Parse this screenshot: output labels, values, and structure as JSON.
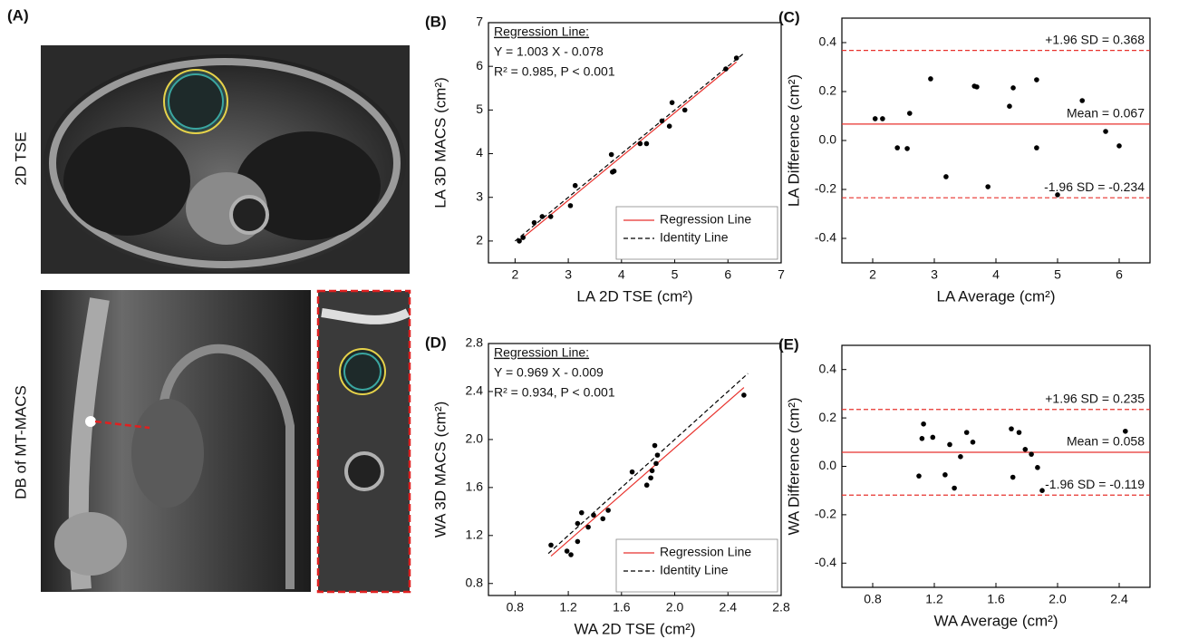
{
  "panel_a": {
    "label": "(A)",
    "top_label": "2D TSE",
    "bottom_label": "DB of MT-MACS"
  },
  "chart_data": [
    {
      "type": "scatter",
      "title": "(B)",
      "x_label": "LA 2D TSE (cm²)",
      "y_label": "LA 3D MACS (cm²)",
      "annotation": [
        "Regression Line:",
        "Y = 1.003 X - 0.078",
        "R² = 0.985, P < 0.001"
      ],
      "x": [
        2.08,
        2.15,
        2.36,
        2.51,
        2.67,
        3.04,
        3.13,
        3.81,
        3.83,
        3.86,
        4.35,
        4.47,
        4.76,
        4.9,
        4.95,
        5.19,
        5.96,
        6.16
      ],
      "values": [
        2.0,
        2.08,
        2.42,
        2.56,
        2.56,
        2.81,
        3.27,
        3.98,
        3.58,
        3.6,
        4.23,
        4.23,
        4.75,
        4.63,
        5.17,
        5.0,
        5.94,
        6.19
      ],
      "color": "#000000",
      "series": [
        {
          "name": "Regression Line",
          "color": "#e8322d",
          "dash": false,
          "x": [
            2.08,
            6.16
          ],
          "values": [
            2.01,
            6.1
          ]
        },
        {
          "name": "Identity Line",
          "color": "#000000",
          "dash": true,
          "x": [
            2.0,
            6.3
          ],
          "values": [
            2.0,
            6.3
          ]
        }
      ],
      "legend": "lower right",
      "xlim": [
        1.5,
        7
      ],
      "ylim": [
        1.5,
        7
      ],
      "xticks": [
        2,
        3,
        4,
        5,
        6,
        7
      ],
      "yticks": [
        2,
        3,
        4,
        5,
        6,
        7
      ],
      "grid": false
    },
    {
      "type": "scatter",
      "title": "(C)",
      "x_label": "LA Average (cm²)",
      "y_label": "LA Difference (cm²)",
      "x": [
        2.04,
        2.16,
        2.4,
        2.6,
        2.56,
        2.94,
        3.19,
        3.65,
        3.69,
        3.87,
        4.22,
        4.28,
        4.66,
        4.66,
        5.0,
        5.4,
        5.78,
        6.0
      ],
      "values": [
        0.089,
        0.089,
        -0.03,
        0.111,
        -0.033,
        0.252,
        -0.148,
        0.222,
        0.219,
        -0.189,
        0.14,
        0.215,
        0.248,
        -0.03,
        -0.222,
        0.163,
        0.037,
        -0.022
      ],
      "color": "#000000",
      "hlines": [
        {
          "label": "+1.96 SD = 0.368",
          "value": 0.368,
          "color": "#e8322d",
          "dash": true
        },
        {
          "label": "Mean = 0.067",
          "value": 0.067,
          "color": "#e8322d",
          "dash": false
        },
        {
          "label": "-1.96 SD = -0.234",
          "value": -0.234,
          "color": "#e8322d",
          "dash": true
        }
      ],
      "xlim": [
        1.5,
        6.5
      ],
      "ylim": [
        -0.5,
        0.5
      ],
      "xticks": [
        2,
        3,
        4,
        5,
        6
      ],
      "yticks": [
        -0.4,
        -0.2,
        {
          "value": 0,
          "label": "0.0"
        },
        0.2,
        0.4
      ],
      "grid": false
    },
    {
      "type": "scatter",
      "title": "(D)",
      "x_label": "WA 2D TSE (cm²)",
      "y_label": "WA 3D MACS (cm²)",
      "annotation": [
        "Regression Line:",
        "Y = 0.969 X - 0.009",
        "R² = 0.934, P < 0.001"
      ],
      "x": [
        1.07,
        1.19,
        1.22,
        1.27,
        1.27,
        1.3,
        1.35,
        1.39,
        1.46,
        1.5,
        1.68,
        1.79,
        1.82,
        1.83,
        1.85,
        1.86,
        1.87,
        2.52
      ],
      "values": [
        1.12,
        1.07,
        1.04,
        1.3,
        1.15,
        1.39,
        1.27,
        1.37,
        1.34,
        1.41,
        1.73,
        1.62,
        1.68,
        1.74,
        1.95,
        1.8,
        1.87,
        2.37
      ],
      "color": "#000000",
      "series": [
        {
          "name": "Regression Line",
          "color": "#e8322d",
          "dash": false,
          "x": [
            1.07,
            2.52
          ],
          "values": [
            1.028,
            2.433
          ]
        },
        {
          "name": "Identity Line",
          "color": "#000000",
          "dash": true,
          "x": [
            1.05,
            2.55
          ],
          "values": [
            1.05,
            2.55
          ]
        }
      ],
      "legend": "lower right",
      "xlim": [
        0.6,
        2.8
      ],
      "ylim": [
        0.7,
        2.8
      ],
      "xticks": [
        0.8,
        1.2,
        1.6,
        {
          "value": 2,
          "label": "2.0"
        },
        2.4,
        2.8
      ],
      "yticks": [
        0.8,
        1.2,
        1.6,
        {
          "value": 2,
          "label": "2.0"
        },
        2.4,
        2.8
      ],
      "grid": false
    },
    {
      "type": "scatter",
      "title": "(E)",
      "x_label": "WA Average (cm²)",
      "y_label": "WA Difference (cm²)",
      "x": [
        1.1,
        1.12,
        1.13,
        1.19,
        1.27,
        1.3,
        1.33,
        1.37,
        1.41,
        1.45,
        1.7,
        1.71,
        1.75,
        1.79,
        1.83,
        1.87,
        1.9,
        2.44
      ],
      "values": [
        -0.04,
        0.115,
        0.175,
        0.12,
        -0.035,
        0.09,
        -0.09,
        0.04,
        0.14,
        0.1,
        0.155,
        -0.045,
        0.14,
        0.07,
        0.05,
        -0.005,
        -0.1,
        0.145
      ],
      "color": "#000000",
      "hlines": [
        {
          "label": "+1.96 SD = 0.235",
          "value": 0.235,
          "color": "#e8322d",
          "dash": true
        },
        {
          "label": "Mean = 0.058",
          "value": 0.058,
          "color": "#e8322d",
          "dash": false
        },
        {
          "label": "-1.96 SD = -0.119",
          "value": -0.119,
          "color": "#e8322d",
          "dash": true
        }
      ],
      "xlim": [
        0.6,
        2.6
      ],
      "ylim": [
        -0.5,
        0.5
      ],
      "xticks": [
        0.8,
        1.2,
        1.6,
        {
          "value": 2,
          "label": "2.0"
        },
        2.4
      ],
      "yticks": [
        -0.4,
        -0.2,
        {
          "value": 0,
          "label": "0.0"
        },
        0.2,
        0.4
      ],
      "grid": false
    }
  ]
}
